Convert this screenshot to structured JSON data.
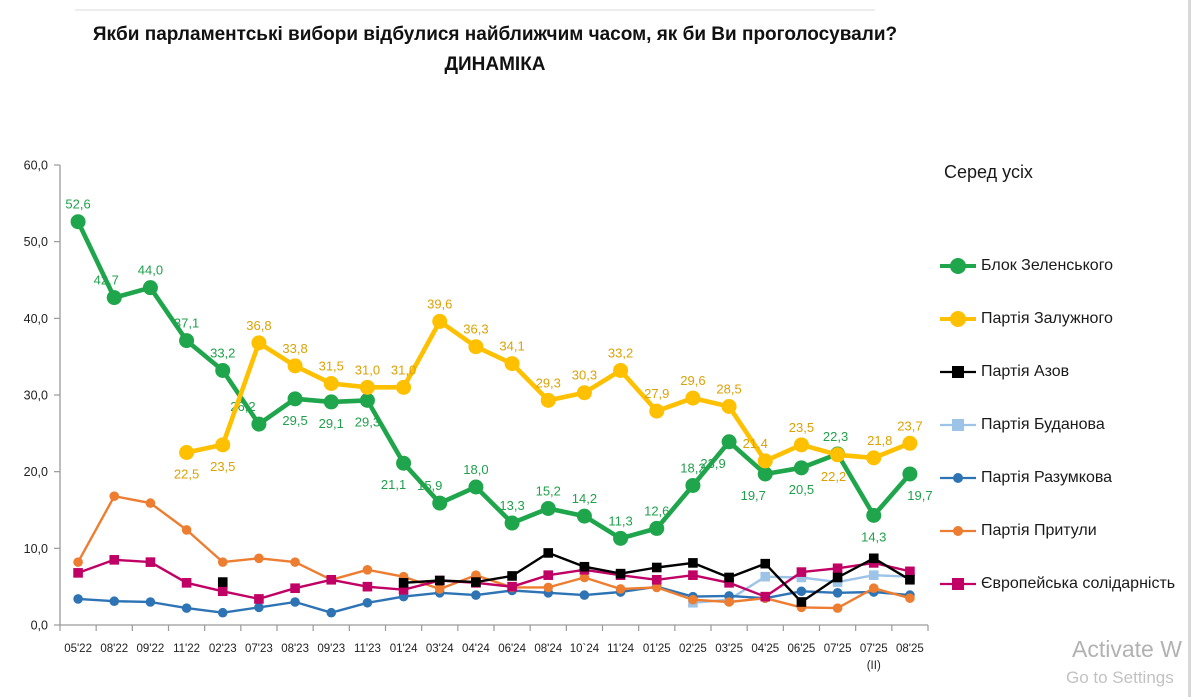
{
  "title": {
    "line1": "Якби парламентські вибори відбулися найближчим часом, як би Ви проголосували?",
    "line2": "ДИНАМІКА"
  },
  "audience_label": "Серед усіх",
  "watermark": {
    "line1": "Activate W",
    "line2": "Go to Settings"
  },
  "chart_data": {
    "type": "line",
    "title": "ДИНАМІКА",
    "categories": [
      "05'22",
      "08'22",
      "09'22",
      "11'22",
      "02'23",
      "07'23",
      "08'23",
      "09'23",
      "11'23",
      "01'24",
      "03'24",
      "04'24",
      "06'24",
      "08'24",
      "10`24",
      "11'24",
      "01'25",
      "02'25",
      "03'25",
      "04'25",
      "06'25",
      "07'25",
      "07'25",
      "08'25"
    ],
    "category_note": {
      "index": 22,
      "label": "(II)"
    },
    "ylim": [
      0,
      60
    ],
    "ytick_labels": [
      "0,0",
      "10,0",
      "20,0",
      "30,0",
      "40,0",
      "50,0",
      "60,0"
    ],
    "grid": false,
    "legend_position": "right",
    "series": [
      {
        "name": "Блок Зеленського",
        "color": "#1FA54B",
        "label_color": "#21A04C",
        "marker": "circle",
        "major": true,
        "data_labels": true,
        "values": [
          52.6,
          42.7,
          44.0,
          37.1,
          33.2,
          26.2,
          29.5,
          29.1,
          29.3,
          21.1,
          15.9,
          18.0,
          13.3,
          15.2,
          14.2,
          11.3,
          12.6,
          18.2,
          23.9,
          19.7,
          20.5,
          22.3,
          14.3,
          19.7
        ]
      },
      {
        "name": "Партія Залужного",
        "color": "#FFC000",
        "label_color": "#DCA104",
        "marker": "circle",
        "major": true,
        "data_labels": true,
        "values": [
          null,
          null,
          null,
          22.5,
          23.5,
          36.8,
          33.8,
          31.5,
          31.0,
          31.0,
          39.6,
          36.3,
          34.1,
          29.3,
          30.3,
          33.2,
          27.9,
          29.6,
          28.5,
          21.4,
          23.5,
          22.2,
          21.8,
          23.7
        ]
      },
      {
        "name": "Партія Азов",
        "color": "#000000",
        "marker": "square",
        "major": false,
        "data_labels": false,
        "values": [
          null,
          null,
          null,
          null,
          5.6,
          null,
          null,
          null,
          null,
          5.5,
          5.8,
          5.6,
          6.4,
          9.4,
          7.6,
          6.7,
          7.5,
          8.1,
          6.2,
          8.0,
          3.0,
          6.2,
          8.7,
          5.9
        ]
      },
      {
        "name": "Партія Буданова",
        "color": "#9DC3E6",
        "marker": "square",
        "major": false,
        "data_labels": false,
        "values": [
          null,
          null,
          null,
          null,
          null,
          null,
          null,
          null,
          null,
          null,
          null,
          null,
          null,
          null,
          null,
          null,
          null,
          2.9,
          3.3,
          6.3,
          6.2,
          5.6,
          6.5,
          6.3
        ]
      },
      {
        "name": "Партія Разумкова",
        "color": "#2E74B5",
        "marker": "circle",
        "major": false,
        "data_labels": false,
        "values": [
          3.4,
          3.1,
          3.0,
          2.2,
          1.6,
          2.3,
          3.0,
          1.6,
          2.9,
          3.7,
          4.2,
          3.9,
          4.5,
          4.2,
          3.9,
          4.3,
          5.0,
          3.7,
          3.8,
          3.5,
          4.4,
          4.2,
          4.3,
          3.9
        ]
      },
      {
        "name": "Партія Притули",
        "color": "#ED7D31",
        "marker": "circle",
        "major": false,
        "data_labels": false,
        "values": [
          8.2,
          16.8,
          15.9,
          12.4,
          8.2,
          8.7,
          8.2,
          5.9,
          7.2,
          6.3,
          4.7,
          6.5,
          4.9,
          4.9,
          6.2,
          4.7,
          4.9,
          3.3,
          3.0,
          3.5,
          2.3,
          2.2,
          4.8,
          3.5
        ]
      },
      {
        "name": "Європейська солідарність",
        "color": "#C00064",
        "marker": "square",
        "major": false,
        "data_labels": false,
        "values": [
          6.8,
          8.5,
          8.2,
          5.5,
          4.4,
          3.4,
          4.8,
          5.9,
          5.0,
          4.6,
          5.8,
          5.5,
          5.0,
          6.5,
          7.2,
          6.5,
          5.9,
          6.5,
          5.5,
          3.7,
          6.9,
          7.4,
          8.1,
          7.0
        ]
      }
    ]
  }
}
